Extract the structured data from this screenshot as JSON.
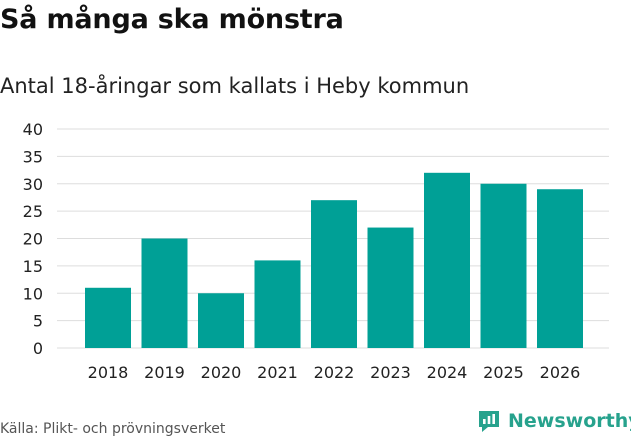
{
  "header": {
    "title": "Så många ska mönstra",
    "subtitle": "Antal 18-åringar som kallats i Heby kommun"
  },
  "footer": {
    "source": "Källa: Plikt- och prövningsverket",
    "brand": "Newsworthy",
    "brand_icon": "newsworthy-chart-logo-icon"
  },
  "colors": {
    "bar": "#00a096",
    "grid": "#dddddd",
    "brand": "#27a28d"
  },
  "chart_data": {
    "type": "bar",
    "title": "Så många ska mönstra",
    "subtitle": "Antal 18-åringar som kallats i Heby kommun",
    "xlabel": "",
    "ylabel": "",
    "categories": [
      "2018",
      "2019",
      "2020",
      "2021",
      "2022",
      "2023",
      "2024",
      "2025",
      "2026"
    ],
    "values": [
      11,
      20,
      10,
      16,
      27,
      22,
      32,
      30,
      29
    ],
    "ylim": [
      0,
      40
    ],
    "yticks": [
      0,
      5,
      10,
      15,
      20,
      25,
      30,
      35,
      40
    ],
    "grid": true,
    "legend": "none"
  }
}
